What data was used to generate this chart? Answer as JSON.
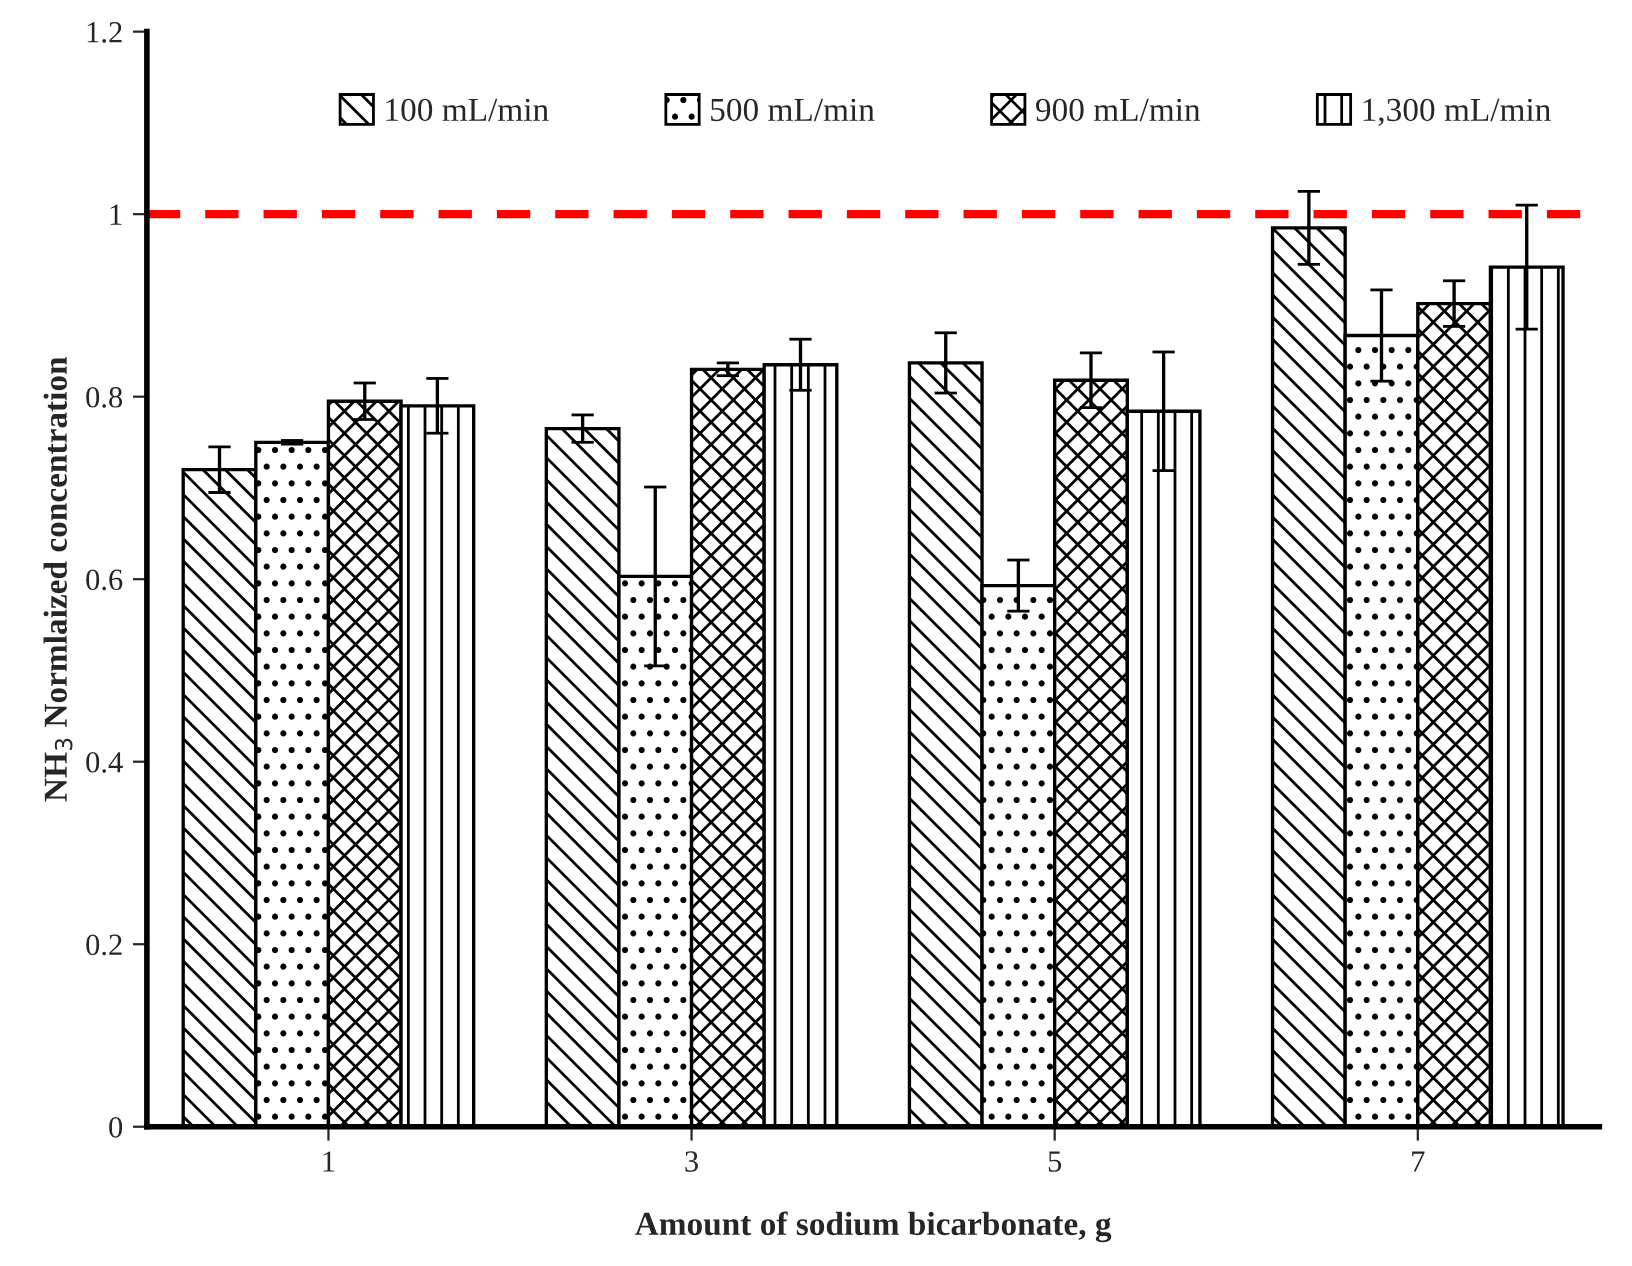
{
  "chart_data": {
    "type": "bar",
    "xlabel": "Amount of sodium bicarbonate, g",
    "ylabel": "NH$_{3}$ Normlaized concentration",
    "categories": [
      "1",
      "3",
      "5",
      "7"
    ],
    "series": [
      {
        "name": "100 mL/min",
        "color": "#000000",
        "values": [
          0.72,
          0.765,
          0.837,
          0.985
        ],
        "errors": [
          0.025,
          0.015,
          0.033,
          0.04
        ]
      },
      {
        "name": "500 mL/min",
        "color": "#000000",
        "values": [
          0.75,
          0.603,
          0.593,
          0.867
        ],
        "errors": [
          0.002,
          0.098,
          0.028,
          0.05
        ]
      },
      {
        "name": "900 mL/min",
        "color": "#000000",
        "values": [
          0.795,
          0.83,
          0.818,
          0.902
        ],
        "errors": [
          0.02,
          0.007,
          0.03,
          0.025
        ]
      },
      {
        "name": "1,300 mL/min",
        "color": "#000000",
        "values": [
          0.79,
          0.835,
          0.784,
          0.942
        ],
        "errors": [
          0.03,
          0.028,
          0.065,
          0.068
        ]
      }
    ],
    "ylim": [
      0,
      1.2
    ],
    "yticks": [
      0,
      0.2,
      0.4,
      0.6,
      0.8,
      1,
      1.2
    ],
    "ref_lines": [
      {
        "axis": "y",
        "value": 1.0,
        "label": null,
        "color": "#ff0000",
        "line_style": "dashed"
      }
    ],
    "grid": false,
    "legend": "top"
  }
}
